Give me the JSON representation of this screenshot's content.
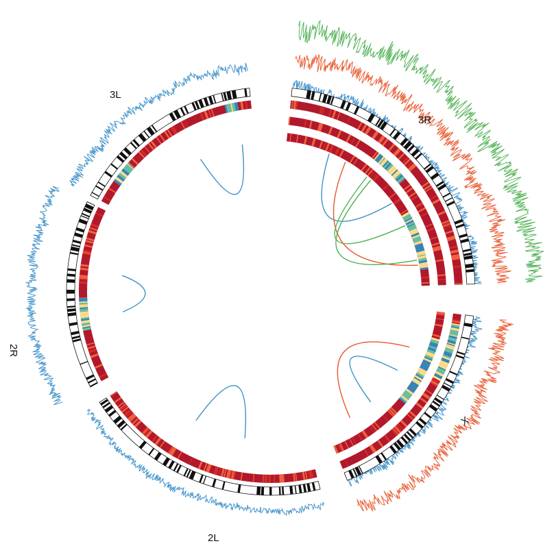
{
  "chromosomes": [
    {
      "name": "3L"
    },
    {
      "name": "3R"
    },
    {
      "name": "X"
    },
    {
      "name": "2L"
    },
    {
      "name": "2R"
    }
  ],
  "colors": {
    "ideogram_dark": "#111111",
    "heat_high": "#b2182b",
    "heat_mid": "#f46d43",
    "heat_yellow": "#fee08b",
    "heat_low": "#3288bd",
    "heat_green": "#66c2a5",
    "track_blue": "#3a8fc8",
    "track_orange": "#e8562a",
    "track_green": "#4caf50"
  },
  "links": [
    {
      "chrom": "3L",
      "color": "blue"
    },
    {
      "chrom": "3R",
      "color": "blue"
    },
    {
      "chrom": "3R",
      "color": "orange"
    },
    {
      "chrom": "3R",
      "color": "green"
    },
    {
      "chrom": "3R",
      "color": "green"
    },
    {
      "chrom": "X",
      "color": "orange"
    },
    {
      "chrom": "X",
      "color": "blue"
    },
    {
      "chrom": "2L",
      "color": "blue"
    },
    {
      "chrom": "2R",
      "color": "blue"
    }
  ]
}
